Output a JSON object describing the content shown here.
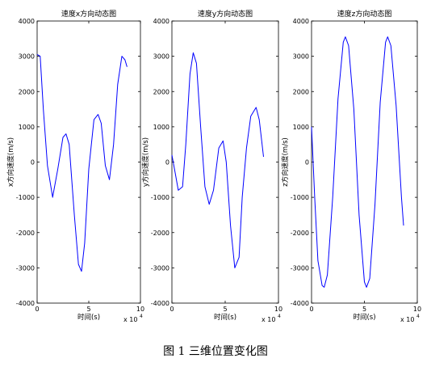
{
  "figure": {
    "caption": "图 1  三维位置变化图"
  },
  "chart_data": [
    {
      "type": "line",
      "title": "速度x方向动态图",
      "xlabel": "时间(s)",
      "ylabel": "x方向速度(m/s)",
      "x_multiplier": "x 10",
      "x_multiplier_exp": "4",
      "xlim": [
        0,
        10
      ],
      "ylim": [
        -4000,
        4000
      ],
      "xticks": [
        "0",
        "5",
        "10"
      ],
      "yticks": [
        "4000",
        "3000",
        "2000",
        "1000",
        "0",
        "-1000",
        "-2000",
        "-3000",
        "-4000"
      ],
      "line_color": "#0000ff",
      "x": [
        0,
        0.3,
        0.6,
        1.0,
        1.5,
        2.0,
        2.5,
        2.8,
        3.1,
        3.6,
        4.0,
        4.3,
        4.6,
        5.0,
        5.5,
        5.9,
        6.2,
        6.6,
        7.0,
        7.4,
        7.8,
        8.2,
        8.5,
        8.7
      ],
      "y": [
        3050,
        3000,
        1500,
        -100,
        -1000,
        -200,
        700,
        800,
        500,
        -1500,
        -2900,
        -3100,
        -2300,
        -200,
        1200,
        1350,
        1100,
        -100,
        -500,
        500,
        2200,
        3000,
        2900,
        2700
      ]
    },
    {
      "type": "line",
      "title": "速度y方向动态图",
      "xlabel": "时间(s)",
      "ylabel": "y方向速度(m/s)",
      "x_multiplier": "x 10",
      "x_multiplier_exp": "4",
      "xlim": [
        0,
        10
      ],
      "ylim": [
        -4000,
        4000
      ],
      "xticks": [
        "0",
        "5",
        "10"
      ],
      "yticks": [
        "4000",
        "3000",
        "2000",
        "1000",
        "0",
        "-1000",
        "-2000",
        "-3000",
        "-4000"
      ],
      "line_color": "#0000ff",
      "x": [
        0,
        0.3,
        0.6,
        1.0,
        1.3,
        1.7,
        2.0,
        2.3,
        2.7,
        3.1,
        3.5,
        3.9,
        4.4,
        4.8,
        5.1,
        5.5,
        5.9,
        6.3,
        6.6,
        7.0,
        7.4,
        7.9,
        8.2,
        8.6
      ],
      "y": [
        200,
        -300,
        -800,
        -700,
        500,
        2500,
        3100,
        2800,
        1000,
        -700,
        -1200,
        -800,
        400,
        600,
        0,
        -1800,
        -3000,
        -2700,
        -1000,
        400,
        1300,
        1550,
        1200,
        150
      ]
    },
    {
      "type": "line",
      "title": "速度z方向动态图",
      "xlabel": "时间(s)",
      "ylabel": "z方向速度(m/s)",
      "x_multiplier": "x 10",
      "x_multiplier_exp": "4",
      "xlim": [
        0,
        10
      ],
      "ylim": [
        -4000,
        4000
      ],
      "xticks": [
        "0",
        "5",
        "10"
      ],
      "yticks": [
        "4000",
        "3000",
        "2000",
        "1000",
        "0",
        "-1000",
        "-2000",
        "-3000",
        "-4000"
      ],
      "line_color": "#0000ff",
      "x": [
        0,
        0.3,
        0.6,
        1.0,
        1.2,
        1.5,
        2.0,
        2.5,
        3.0,
        3.2,
        3.5,
        4.0,
        4.5,
        5.0,
        5.2,
        5.5,
        6.0,
        6.5,
        7.0,
        7.2,
        7.5,
        8.0,
        8.5,
        8.7
      ],
      "y": [
        1000,
        -1000,
        -2800,
        -3500,
        -3550,
        -3200,
        -1000,
        1800,
        3400,
        3550,
        3300,
        1500,
        -1500,
        -3400,
        -3550,
        -3300,
        -1200,
        1700,
        3400,
        3550,
        3300,
        1600,
        -1000,
        -1800
      ]
    }
  ]
}
